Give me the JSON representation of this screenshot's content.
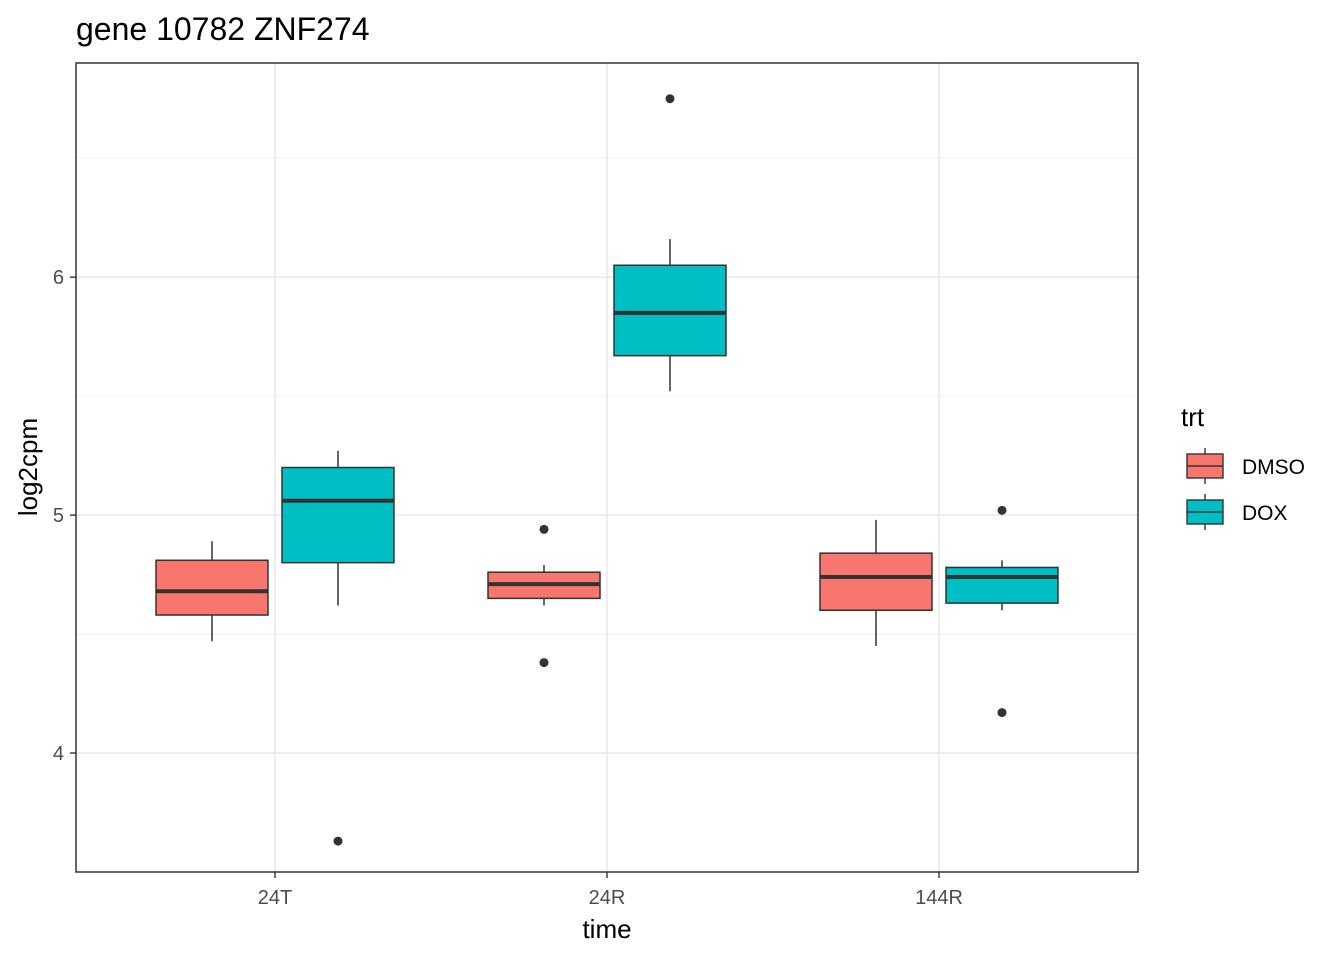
{
  "chart_data": {
    "type": "box",
    "title": "gene 10782 ZNF274",
    "xlabel": "time",
    "ylabel": "log2cpm",
    "categories": [
      "24T",
      "24R",
      "144R"
    ],
    "ylim": [
      3.5,
      6.9
    ],
    "yticks": [
      4,
      5,
      6
    ],
    "grid": true,
    "legend": {
      "title": "trt",
      "position": "right"
    },
    "series": [
      {
        "name": "DMSO",
        "color": "#F8766D",
        "boxes": [
          {
            "category": "24T",
            "whisker_low": 4.47,
            "q1": 4.58,
            "median": 4.68,
            "q3": 4.81,
            "whisker_high": 4.89,
            "outliers": []
          },
          {
            "category": "24R",
            "whisker_low": 4.62,
            "q1": 4.65,
            "median": 4.71,
            "q3": 4.76,
            "whisker_high": 4.79,
            "outliers": [
              4.94,
              4.38
            ]
          },
          {
            "category": "144R",
            "whisker_low": 4.45,
            "q1": 4.6,
            "median": 4.74,
            "q3": 4.84,
            "whisker_high": 4.98,
            "outliers": []
          }
        ]
      },
      {
        "name": "DOX",
        "color": "#00BFC4",
        "boxes": [
          {
            "category": "24T",
            "whisker_low": 4.62,
            "q1": 4.8,
            "median": 5.06,
            "q3": 5.2,
            "whisker_high": 5.27,
            "outliers": [
              3.63
            ]
          },
          {
            "category": "24R",
            "whisker_low": 5.52,
            "q1": 5.67,
            "median": 5.85,
            "q3": 6.05,
            "whisker_high": 6.16,
            "outliers": [
              6.75
            ]
          },
          {
            "category": "144R",
            "whisker_low": 4.6,
            "q1": 4.63,
            "median": 4.74,
            "q3": 4.78,
            "whisker_high": 4.81,
            "outliers": [
              5.02,
              4.17
            ]
          }
        ]
      }
    ]
  }
}
